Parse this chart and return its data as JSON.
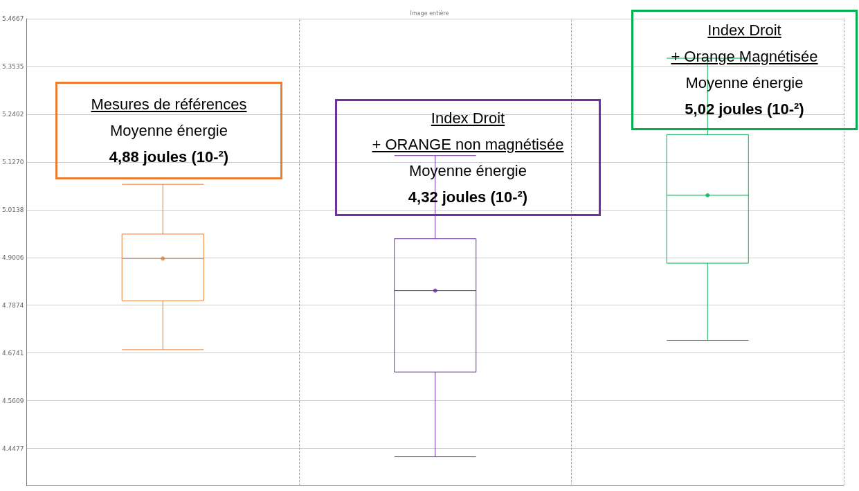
{
  "chart_data": {
    "type": "box",
    "title": "Image entière",
    "categories": [
      null,
      null,
      null
    ],
    "colors": [
      "#ed7d31",
      "#7030a0",
      "#00b050"
    ],
    "boxes": [
      {
        "low": 4.682,
        "q1": 4.798,
        "median": 4.898,
        "q3": 4.956,
        "high": 5.074,
        "mean": 4.898
      },
      {
        "low": 4.428,
        "q1": 4.629,
        "median": 4.822,
        "q3": 4.945,
        "high": 5.142,
        "mean": 4.822
      },
      {
        "low": 4.704,
        "q1": 4.887,
        "median": 5.048,
        "q3": 5.192,
        "high": 5.373,
        "mean": 5.048
      }
    ],
    "ylim": [
      4.36,
      5.4667
    ],
    "yticks": [
      5.4667,
      5.3535,
      5.2402,
      {
        "value": 5.127,
        "label": "5.1270"
      },
      5.0138,
      4.9006,
      4.7874,
      4.6741,
      4.5609,
      4.4477
    ],
    "grid": true,
    "annotations": [
      "Mesures de références\nMoyenne énergie\n4,88 joules (10-²)",
      "Index Droit\n+ ORANGE non magnétisée\nMoyenne énergie\n4,32 joules (10-²)",
      "Index Droit\n+ Orange Magnétisée\nMoyenne énergie\n5,02 joules (10-²)"
    ]
  }
}
